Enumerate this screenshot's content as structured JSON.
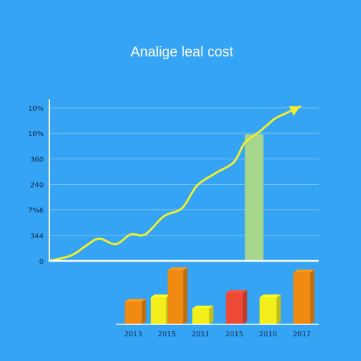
{
  "chart_data": {
    "title": "Analige leal cost",
    "colors": {
      "background": "#35a4f5",
      "grid": "#7fc4f5",
      "axis": "#ffffff",
      "line": "#f3ef28",
      "highlight_bar": "#a6d68b",
      "orange": "#f08a10",
      "yellow": "#f4ee1a",
      "red": "#ee4a36"
    },
    "line_chart": {
      "type": "line",
      "y_tick_labels": [
        "0",
        "344",
        "7%6",
        "240",
        "360",
        "10%",
        "10%"
      ],
      "x": [
        0,
        0.6,
        1,
        1.35,
        1.8,
        2.2,
        2.6,
        3.1,
        3.6,
        4,
        4.5,
        5,
        5.3,
        5.7,
        6.1,
        6.4,
        6.8
      ],
      "y": [
        0,
        0.2,
        0.55,
        0.8,
        0.6,
        0.95,
        0.95,
        1.6,
        1.9,
        2.7,
        3.15,
        3.55,
        4.25,
        4.65,
        5.1,
        5.3,
        5.55
      ],
      "highlight_bar": {
        "x_start": 5.3,
        "x_end": 5.8,
        "value": 4.55
      },
      "arrow": true,
      "xlim": [
        0,
        7.3
      ],
      "ylim": [
        0,
        5.5
      ],
      "grid": true
    },
    "bar_chart": {
      "type": "bar",
      "categories": [
        "2013",
        "2015",
        "2011",
        "2015",
        "2010",
        "2017"
      ],
      "bars": [
        {
          "category_index": 0,
          "value": 1.0,
          "color": "orange"
        },
        {
          "category_index": 1,
          "value": 1.2,
          "color": "yellow"
        },
        {
          "category_index": 1,
          "value": 2.4,
          "color": "orange"
        },
        {
          "category_index": 2,
          "value": 0.7,
          "color": "yellow"
        },
        {
          "category_index": 3,
          "value": 1.4,
          "color": "red"
        },
        {
          "category_index": 4,
          "value": 1.2,
          "color": "yellow"
        },
        {
          "category_index": 5,
          "value": 2.3,
          "color": "orange"
        }
      ],
      "ylim": [
        0,
        2.5
      ]
    }
  }
}
